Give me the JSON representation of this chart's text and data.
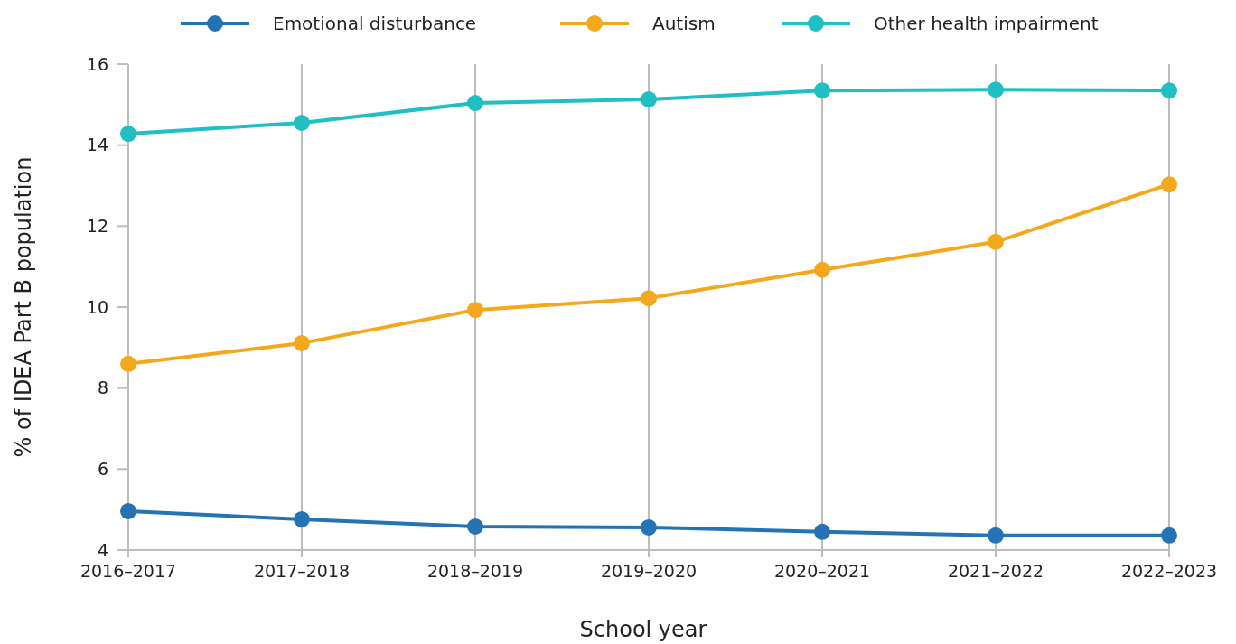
{
  "chart_data": {
    "type": "line",
    "xlabel": "School year",
    "ylabel": "% of IDEA Part B population",
    "categories": [
      "2016–2017",
      "2017–2018",
      "2018–2019",
      "2019–2020",
      "2020–2021",
      "2021–2022",
      "2022–2023"
    ],
    "series": [
      {
        "name": "Emotional disturbance",
        "color": "#2474b5",
        "values": [
          4.96,
          4.76,
          4.58,
          4.56,
          4.45,
          4.36,
          4.36
        ]
      },
      {
        "name": "Autism",
        "color": "#f5a81c",
        "values": [
          8.6,
          9.11,
          9.93,
          10.22,
          10.92,
          11.61,
          13.03
        ]
      },
      {
        "name": "Other health impairment",
        "color": "#1fbfc4",
        "values": [
          14.28,
          14.55,
          15.04,
          15.13,
          15.35,
          15.37,
          15.35
        ]
      }
    ],
    "ylim": [
      4,
      16
    ],
    "yticks": [
      4,
      6,
      8,
      10,
      12,
      14,
      16
    ],
    "grid": "x",
    "legend": "top",
    "marker": "circle",
    "line_style": "solid"
  }
}
